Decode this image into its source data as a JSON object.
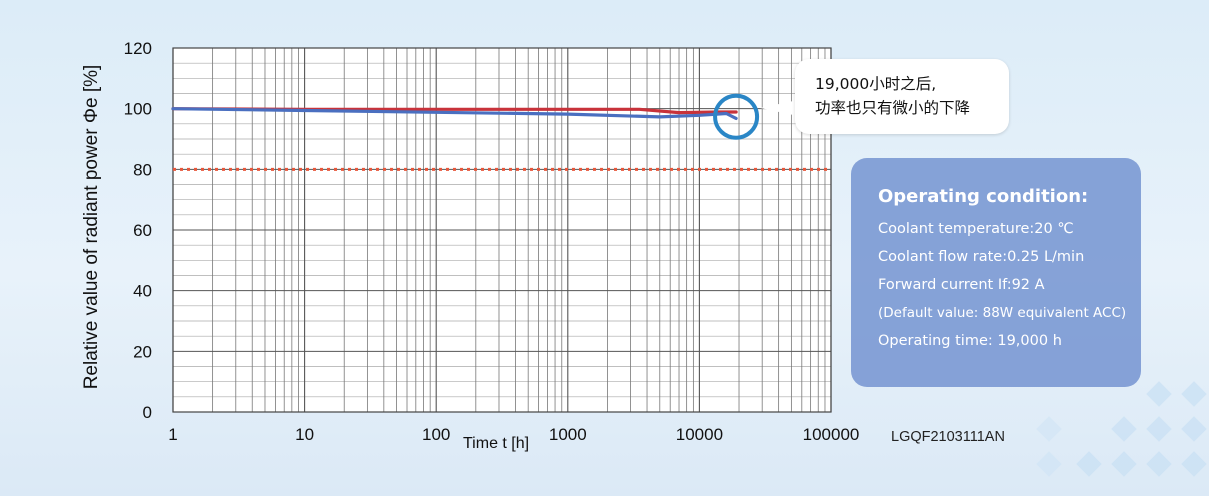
{
  "chart_data": {
    "type": "line",
    "xscale": "log",
    "xlim": [
      1,
      100000
    ],
    "ylim": [
      0,
      120
    ],
    "grid": true,
    "xlabel": "Time t [h]",
    "ylabel": "Relative value of radiant power Φe [%]",
    "x_ticks": [
      "1",
      "10",
      "100",
      "1000",
      "10000",
      "100000"
    ],
    "y_ticks": [
      "0",
      "20",
      "40",
      "60",
      "80",
      "100",
      "120"
    ],
    "reference_line": {
      "y": 80,
      "style": "dotted",
      "color": "#e8563a"
    },
    "series": [
      {
        "color": "#c8323a",
        "points": [
          [
            1,
            100
          ],
          [
            10,
            99.8
          ],
          [
            100,
            99.8
          ],
          [
            1000,
            99.8
          ],
          [
            3500,
            99.8
          ],
          [
            7000,
            98.7
          ],
          [
            14000,
            98.9
          ],
          [
            19000,
            98.9
          ]
        ]
      },
      {
        "color": "#4a6fc0",
        "points": [
          [
            1,
            100
          ],
          [
            10,
            99.4
          ],
          [
            100,
            98.8
          ],
          [
            1000,
            98.2
          ],
          [
            5000,
            97.3
          ],
          [
            10000,
            97.8
          ],
          [
            16000,
            98.4
          ],
          [
            19000,
            96.8
          ]
        ]
      }
    ],
    "highlight": {
      "x": 19000,
      "y": 98,
      "color": "#2a86c6"
    }
  },
  "callout": {
    "line1": "19,000小时之后,",
    "line2": "功率也只有微小的下降"
  },
  "info_box": {
    "title": "Operating condition:",
    "lines": [
      "Coolant temperature:20 ℃",
      "Coolant flow rate:0.25 L/min",
      "Forward current If:92 A",
      "(Default value: 88W equivalent ACC)",
      "Operating time: 19,000 h"
    ]
  },
  "product_code": "LGQF2103111AN",
  "colors": {
    "info_bg": "#7896d2",
    "background": "#dcecf8"
  }
}
